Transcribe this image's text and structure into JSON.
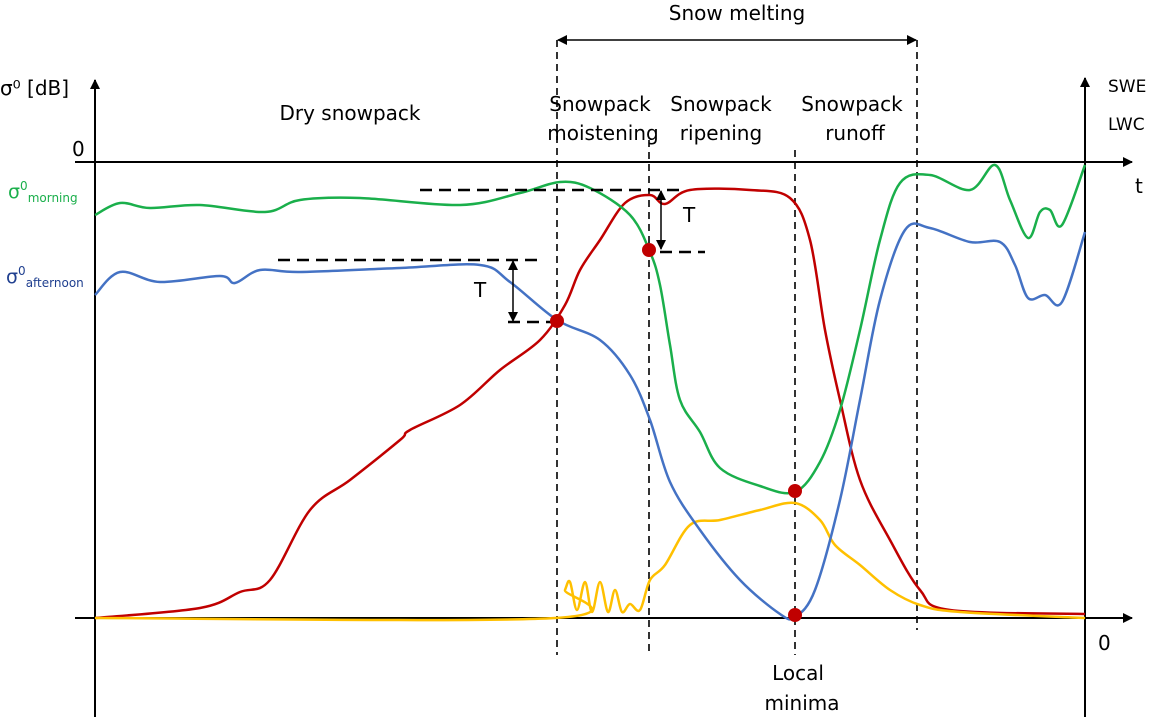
{
  "colors": {
    "morning": "#1aaf4b",
    "afternoon": "#4472c4",
    "swe": "#c00000",
    "lwc": "#ffc000",
    "morning_label": "#1aaf4b",
    "afternoon_label": "#1f3f8f"
  },
  "axes": {
    "left_title": "σ⁰ [dB]",
    "left_zero": "0",
    "time_label": "t",
    "right_top": "SWE",
    "right_bottom": "LWC",
    "bottom_zero": "0"
  },
  "series_labels": {
    "morning_sigma": "σ",
    "morning_sup": "0",
    "morning_sub": "morning",
    "afternoon_sigma": "σ",
    "afternoon_sup": "0",
    "afternoon_sub": "afternoon"
  },
  "phases": {
    "melting": "Snow melting",
    "dry": "Dry snowpack",
    "moistening_1": "Snowpack",
    "moistening_2": "moistening",
    "ripening_1": "Snowpack",
    "ripening_2": "ripening",
    "runoff_1": "Snowpack",
    "runoff_2": "runoff"
  },
  "annotations": {
    "threshold_1": "T",
    "threshold_2": "T",
    "minima_1": "Local",
    "minima_2": "minima"
  }
}
